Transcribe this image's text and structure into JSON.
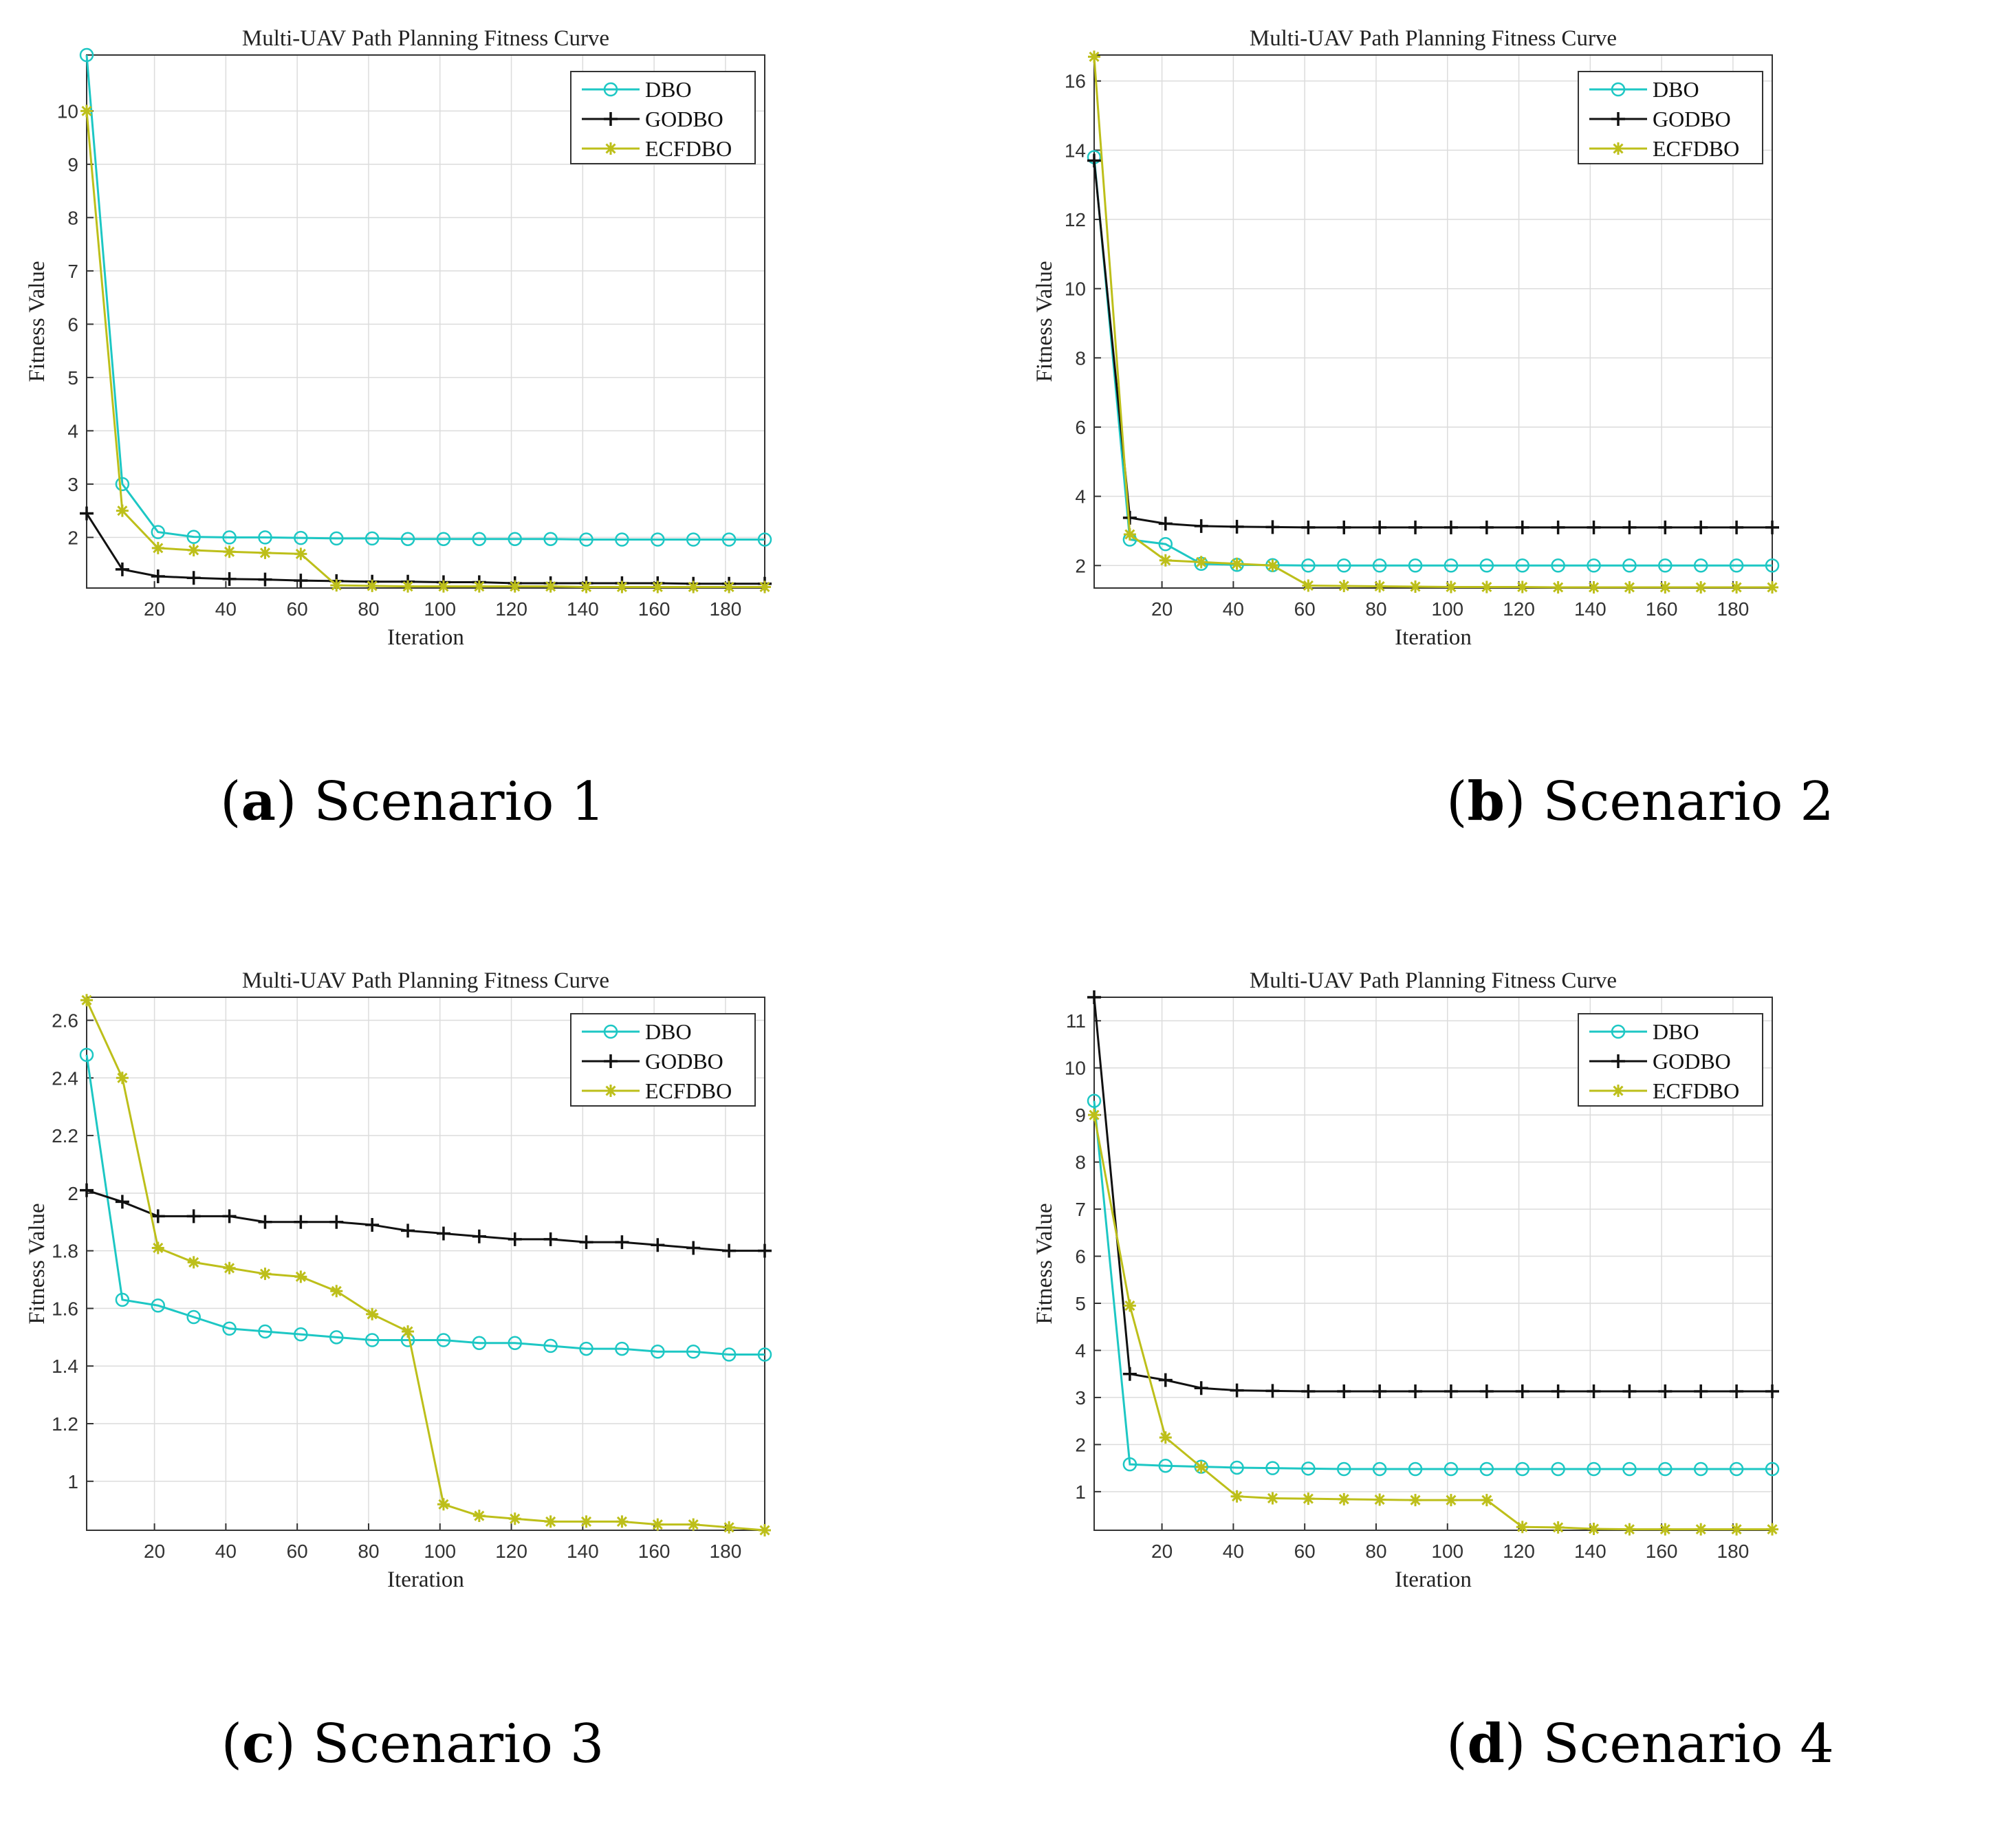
{
  "colors": {
    "dbo": "#1dc7c4",
    "godbo": "#111111",
    "ecfdbo": "#bdbf1a",
    "grid": "#dcdcdc",
    "axis": "#333333"
  },
  "chart_data": [
    {
      "type": "line",
      "title": "Multi-UAV Path Planning Fitness Curve",
      "xlabel": "Iteration",
      "ylabel": "Fitness Value",
      "caption": {
        "letter": "a",
        "text": "Scenario 1"
      },
      "xlim": [
        1,
        191
      ],
      "ylim": [
        1.05,
        11.05
      ],
      "xticks": [
        20,
        40,
        60,
        80,
        100,
        120,
        140,
        160,
        180
      ],
      "yticks": [
        2,
        3,
        4,
        5,
        6,
        7,
        8,
        9,
        10
      ],
      "x": [
        1,
        11,
        21,
        31,
        41,
        51,
        61,
        71,
        81,
        91,
        101,
        111,
        121,
        131,
        141,
        151,
        161,
        171,
        181,
        191
      ],
      "legend": [
        "DBO",
        "GODBO",
        "ECFDBO"
      ],
      "series": [
        {
          "name": "DBO",
          "values": [
            11.05,
            3.0,
            2.1,
            2.01,
            2.0,
            2.0,
            1.99,
            1.98,
            1.98,
            1.97,
            1.97,
            1.97,
            1.97,
            1.97,
            1.96,
            1.96,
            1.96,
            1.96,
            1.96,
            1.96
          ]
        },
        {
          "name": "GODBO",
          "values": [
            2.45,
            1.4,
            1.27,
            1.24,
            1.22,
            1.21,
            1.19,
            1.18,
            1.17,
            1.17,
            1.16,
            1.16,
            1.14,
            1.14,
            1.14,
            1.14,
            1.14,
            1.13,
            1.13,
            1.13
          ]
        },
        {
          "name": "ECFDBO",
          "values": [
            10.0,
            2.5,
            1.8,
            1.76,
            1.73,
            1.71,
            1.69,
            1.1,
            1.09,
            1.08,
            1.08,
            1.08,
            1.08,
            1.08,
            1.07,
            1.07,
            1.07,
            1.07,
            1.07,
            1.07
          ]
        }
      ]
    },
    {
      "type": "line",
      "title": "Multi-UAV Path Planning Fitness Curve",
      "xlabel": "Iteration",
      "ylabel": "Fitness Value",
      "caption": {
        "letter": "b",
        "text": "Scenario 2"
      },
      "xlim": [
        1,
        191
      ],
      "ylim": [
        1.35,
        16.75
      ],
      "xticks": [
        20,
        40,
        60,
        80,
        100,
        120,
        140,
        160,
        180
      ],
      "yticks": [
        2,
        4,
        6,
        8,
        10,
        12,
        14,
        16
      ],
      "x": [
        1,
        11,
        21,
        31,
        41,
        51,
        61,
        71,
        81,
        91,
        101,
        111,
        121,
        131,
        141,
        151,
        161,
        171,
        181,
        191
      ],
      "legend": [
        "DBO",
        "GODBO",
        "ECFDBO"
      ],
      "series": [
        {
          "name": "DBO",
          "values": [
            13.8,
            2.75,
            2.62,
            2.05,
            2.02,
            2.01,
            2.0,
            2.0,
            2.0,
            2.0,
            2.0,
            2.0,
            2.0,
            2.0,
            2.0,
            2.0,
            2.0,
            2.0,
            2.0,
            2.0
          ]
        },
        {
          "name": "GODBO",
          "values": [
            13.7,
            3.38,
            3.21,
            3.14,
            3.12,
            3.11,
            3.1,
            3.1,
            3.1,
            3.1,
            3.1,
            3.1,
            3.1,
            3.1,
            3.1,
            3.1,
            3.1,
            3.1,
            3.1,
            3.1
          ]
        },
        {
          "name": "ECFDBO",
          "values": [
            16.7,
            2.9,
            2.15,
            2.1,
            2.05,
            2.0,
            1.42,
            1.41,
            1.4,
            1.39,
            1.38,
            1.38,
            1.38,
            1.37,
            1.37,
            1.37,
            1.37,
            1.37,
            1.37,
            1.37
          ]
        }
      ]
    },
    {
      "type": "line",
      "title": "Multi-UAV Path Planning Fitness Curve",
      "xlabel": "Iteration",
      "ylabel": "Fitness Value",
      "caption": {
        "letter": "c",
        "text": "Scenario 3"
      },
      "xlim": [
        1,
        191
      ],
      "ylim": [
        0.83,
        2.68
      ],
      "xticks": [
        20,
        40,
        60,
        80,
        100,
        120,
        140,
        160,
        180
      ],
      "yticks": [
        1,
        1.2,
        1.4,
        1.6,
        1.8,
        2,
        2.2,
        2.4,
        2.6
      ],
      "x": [
        1,
        11,
        21,
        31,
        41,
        51,
        61,
        71,
        81,
        91,
        101,
        111,
        121,
        131,
        141,
        151,
        161,
        171,
        181,
        191
      ],
      "legend": [
        "DBO",
        "GODBO",
        "ECFDBO"
      ],
      "series": [
        {
          "name": "DBO",
          "values": [
            2.48,
            1.63,
            1.61,
            1.57,
            1.53,
            1.52,
            1.51,
            1.5,
            1.49,
            1.49,
            1.49,
            1.48,
            1.48,
            1.47,
            1.46,
            1.46,
            1.45,
            1.45,
            1.44,
            1.44
          ]
        },
        {
          "name": "GODBO",
          "values": [
            2.01,
            1.97,
            1.92,
            1.92,
            1.92,
            1.9,
            1.9,
            1.9,
            1.89,
            1.87,
            1.86,
            1.85,
            1.84,
            1.84,
            1.83,
            1.83,
            1.82,
            1.81,
            1.8,
            1.8
          ]
        },
        {
          "name": "ECFDBO",
          "values": [
            2.67,
            2.4,
            1.81,
            1.76,
            1.74,
            1.72,
            1.71,
            1.66,
            1.58,
            1.52,
            0.92,
            0.88,
            0.87,
            0.86,
            0.86,
            0.86,
            0.85,
            0.85,
            0.84,
            0.83
          ]
        }
      ]
    },
    {
      "type": "line",
      "title": "Multi-UAV Path Planning Fitness Curve",
      "xlabel": "Iteration",
      "ylabel": "Fitness Value",
      "caption": {
        "letter": "d",
        "text": "Scenario 4"
      },
      "xlim": [
        1,
        191
      ],
      "ylim": [
        0.18,
        11.5
      ],
      "xticks": [
        20,
        40,
        60,
        80,
        100,
        120,
        140,
        160,
        180
      ],
      "yticks": [
        1,
        2,
        3,
        4,
        5,
        6,
        7,
        8,
        9,
        10,
        11
      ],
      "x": [
        1,
        11,
        21,
        31,
        41,
        51,
        61,
        71,
        81,
        91,
        101,
        111,
        121,
        131,
        141,
        151,
        161,
        171,
        181,
        191
      ],
      "legend": [
        "DBO",
        "GODBO",
        "ECFDBO"
      ],
      "series": [
        {
          "name": "DBO",
          "values": [
            9.3,
            1.58,
            1.55,
            1.53,
            1.51,
            1.5,
            1.49,
            1.48,
            1.48,
            1.48,
            1.48,
            1.48,
            1.48,
            1.48,
            1.48,
            1.48,
            1.48,
            1.48,
            1.48,
            1.48
          ]
        },
        {
          "name": "GODBO",
          "values": [
            11.5,
            3.5,
            3.37,
            3.2,
            3.15,
            3.14,
            3.13,
            3.13,
            3.13,
            3.13,
            3.13,
            3.13,
            3.13,
            3.13,
            3.13,
            3.13,
            3.13,
            3.13,
            3.13,
            3.13
          ]
        },
        {
          "name": "ECFDBO",
          "values": [
            9.0,
            4.95,
            2.15,
            1.52,
            0.9,
            0.86,
            0.85,
            0.84,
            0.83,
            0.82,
            0.82,
            0.82,
            0.25,
            0.24,
            0.21,
            0.2,
            0.2,
            0.2,
            0.2,
            0.2
          ]
        }
      ]
    }
  ]
}
